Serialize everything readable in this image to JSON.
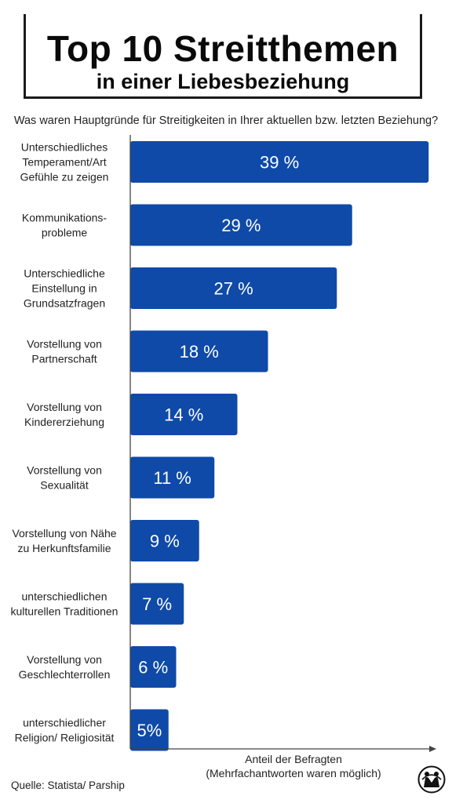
{
  "header": {
    "title": "Top 10 Streitthemen",
    "subtitle": "in einer Liebesbeziehung",
    "question": "Was waren Hauptgründe für Streitigkeiten in Ihrer aktuellen bzw. letzten Beziehung?"
  },
  "chart_data": {
    "type": "bar",
    "orientation": "horizontal",
    "categories": [
      [
        "Unterschiedliches",
        "Temperament/Art",
        "Gefühle zu zeigen"
      ],
      [
        "Kommunikations-",
        "probleme"
      ],
      [
        "Unterschiedliche",
        "Einstellung in",
        "Grundsatzfragen"
      ],
      [
        "Vorstellung von",
        "Partnerschaft"
      ],
      [
        "Vorstellung von",
        "Kindererziehung"
      ],
      [
        "Vorstellung von",
        "Sexualität"
      ],
      [
        "Vorstellung von Nähe",
        "zu Herkunftsfamilie"
      ],
      [
        "unterschiedlichen",
        "kulturellen Traditionen"
      ],
      [
        "Vorstellung von",
        "Geschlechterrollen"
      ],
      [
        "unterschiedlicher",
        "Religion/ Religiosität"
      ]
    ],
    "values": [
      39,
      29,
      27,
      18,
      14,
      11,
      9,
      7,
      6,
      5
    ],
    "value_labels": [
      "39 %",
      "29 %",
      "27 %",
      "18 %",
      "14 %",
      "11 %",
      "9 %",
      "7 %",
      "6 %",
      "5%"
    ],
    "xlabel": [
      "Anteil der Befragten",
      "(Mehrfachantworten waren möglich)"
    ],
    "bar_color": "#0f4aa8",
    "grid": false
  },
  "footer": {
    "source": "Quelle: Statista/ Parship",
    "logo_icon": "couple-logo-icon"
  }
}
